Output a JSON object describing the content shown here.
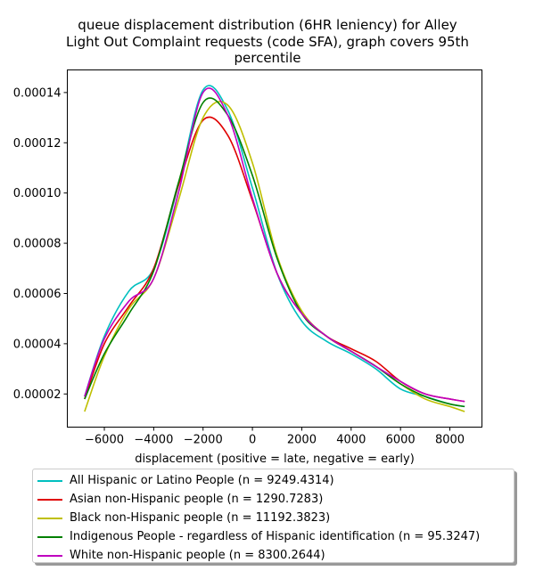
{
  "chart_data": {
    "type": "line",
    "title_lines": [
      "queue displacement distribution (6HR leniency) for Alley",
      "Light Out Complaint  requests (code SFA), graph covers 95th",
      "percentile"
    ],
    "xlabel": "displacement (positive = late, negative = early)",
    "ylabel": "",
    "xlim": [
      -7500,
      9300
    ],
    "ylim": [
      6.8e-06,
      0.000149
    ],
    "xticks": [
      -6000,
      -4000,
      -2000,
      0,
      2000,
      4000,
      6000,
      8000
    ],
    "xtick_labels": [
      "−6000",
      "−4000",
      "−2000",
      "0",
      "2000",
      "4000",
      "6000",
      "8000"
    ],
    "yticks": [
      2e-05,
      4e-05,
      6e-05,
      8e-05,
      0.0001,
      0.00012,
      0.00014
    ],
    "ytick_labels": [
      "0.00002",
      "0.00004",
      "0.00006",
      "0.00008",
      "0.00010",
      "0.00012",
      "0.00014"
    ],
    "grid": false,
    "legend_position": "below plot",
    "x": [
      -6800,
      -6000,
      -5000,
      -4000,
      -3000,
      -2000,
      -1000,
      0,
      1000,
      2000,
      3000,
      4000,
      5000,
      6000,
      7000,
      8000,
      8600
    ],
    "series": [
      {
        "name": "All Hispanic or Latino People (n = 9249.4314)",
        "color": "#00bfbf",
        "values": [
          1.9e-05,
          4.3e-05,
          6.1e-05,
          7e-05,
          0.000103,
          0.000141,
          0.000133,
          0.000102,
          6.8e-05,
          4.9e-05,
          4.1e-05,
          3.6e-05,
          3e-05,
          2.2e-05,
          1.9e-05,
          1.6e-05,
          1.5e-05
        ]
      },
      {
        "name": "Asian non-Hispanic people (n = 1290.7283)",
        "color": "#e00000",
        "values": [
          1.8e-05,
          4e-05,
          5.5e-05,
          7e-05,
          0.000103,
          0.000129,
          0.000123,
          9.7e-05,
          6.8e-05,
          5.2e-05,
          4.3e-05,
          3.8e-05,
          3.3e-05,
          2.5e-05,
          2e-05,
          1.8e-05,
          1.7e-05
        ]
      },
      {
        "name": "Black non-Hispanic people (n = 11192.3823)",
        "color": "#bfbf00",
        "values": [
          1.3e-05,
          3.5e-05,
          5.4e-05,
          6.6e-05,
          9.7e-05,
          0.00013,
          0.000135,
          0.000112,
          7.5e-05,
          5.3e-05,
          4.3e-05,
          3.7e-05,
          3.1e-05,
          2.4e-05,
          1.8e-05,
          1.5e-05,
          1.3e-05
        ]
      },
      {
        "name": "Indigenous People - regardless of Hispanic identification (n = 95.3247)",
        "color": "#008000",
        "values": [
          1.8e-05,
          3.6e-05,
          5.2e-05,
          6.9e-05,
          0.000104,
          0.000136,
          0.000131,
          0.000107,
          7.4e-05,
          5.2e-05,
          4.3e-05,
          3.7e-05,
          3.1e-05,
          2.4e-05,
          1.9e-05,
          1.6e-05,
          1.5e-05
        ]
      },
      {
        "name": "White non-Hispanic people (n = 8300.2644)",
        "color": "#bf00bf",
        "values": [
          1.9e-05,
          4.2e-05,
          5.7e-05,
          6.6e-05,
          0.0001,
          0.00014,
          0.000131,
          9.8e-05,
          6.8e-05,
          5.2e-05,
          4.3e-05,
          3.7e-05,
          3.1e-05,
          2.5e-05,
          2e-05,
          1.8e-05,
          1.7e-05
        ]
      }
    ]
  }
}
